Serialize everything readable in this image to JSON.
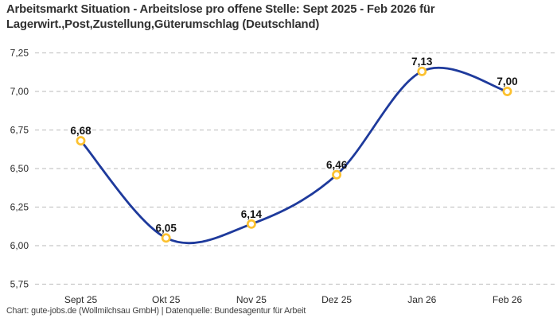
{
  "header": {
    "title": "Arbeitsmarkt Situation - Arbeitslose pro offene Stelle: Sept 2025 - Feb 2026 für Lagerwirt.,Post,Zustellung,Güterumschlag (Deutschland)",
    "title_line1": "Arbeitsmarkt Situation - Arbeitslose pro offene Stelle: Sept 2025 - Feb 2026 für",
    "title_line2": "Lagerwirt.,Post,Zustellung,Güterumschlag (Deutschland)"
  },
  "footer": {
    "credit": "Chart: gute-jobs.de (Wollmilchsau GmbH) | Datenquelle: Bundesagentur für Arbeit"
  },
  "chart_data": {
    "type": "line",
    "title": "Arbeitslose pro offene Stelle",
    "categories": [
      "Sept 25",
      "Okt 25",
      "Nov 25",
      "Dez 25",
      "Jan 26",
      "Feb 26"
    ],
    "values": [
      6.68,
      6.05,
      6.14,
      6.46,
      7.13,
      7.0
    ],
    "value_labels": [
      "6,68",
      "6,05",
      "6,14",
      "6,46",
      "7,13",
      "7,00"
    ],
    "y_ticks": [
      {
        "value": 7.25,
        "label": "7,25"
      },
      {
        "value": 7.0,
        "label": "7,00"
      },
      {
        "value": 6.75,
        "label": "6,75"
      },
      {
        "value": 6.5,
        "label": "6,50"
      },
      {
        "value": 6.25,
        "label": "6,25"
      },
      {
        "value": 6.0,
        "label": "6,00"
      },
      {
        "value": 5.75,
        "label": "5,75"
      }
    ],
    "ylim": [
      5.75,
      7.25
    ],
    "xlabel": "",
    "ylabel": "",
    "grid": "horizontal-dashed",
    "legend": "none",
    "line_style": "smooth-spline",
    "marker": "ring",
    "colors": {
      "line": "#1e3a9c",
      "marker_ring": "#fcc12f",
      "marker_fill": "#ffffff",
      "grid": "#c7c7c7",
      "tick_label": "#2a2a2a",
      "data_label": "#141414",
      "title": "#303030",
      "credit": "#3c3c3c",
      "background": "#ffffff"
    }
  }
}
